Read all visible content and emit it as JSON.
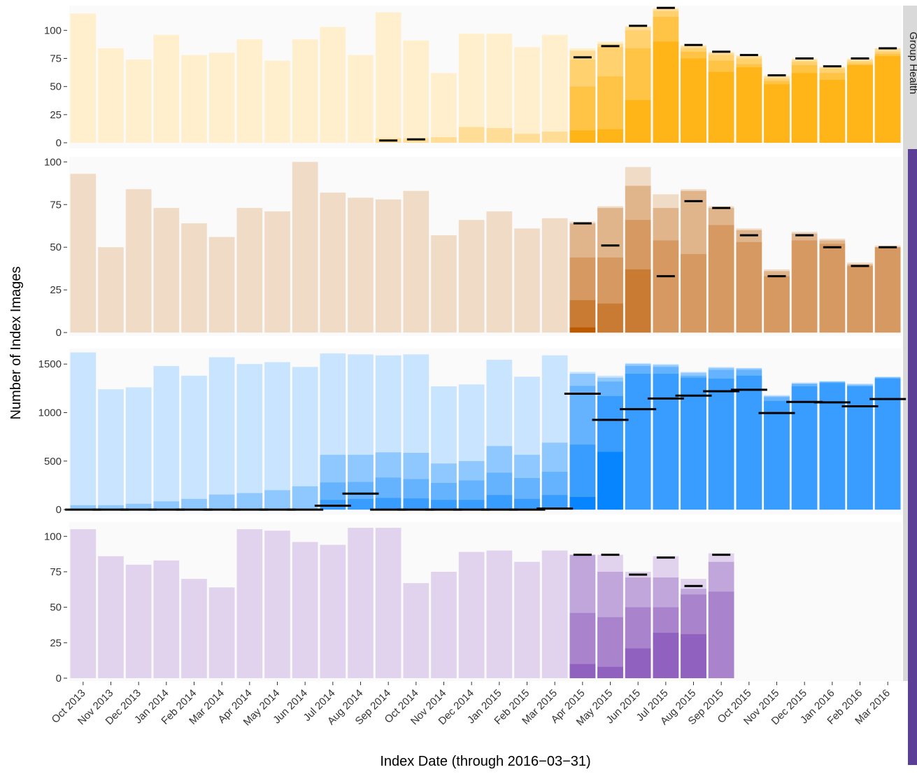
{
  "chart_data": {
    "type": "bar",
    "stacking": "nested-overlay",
    "xlabel": "Index Date (through 2016−03−31)",
    "ylabel": "Number of Index Images",
    "categories": [
      "Oct 2013",
      "Nov 2013",
      "Dec 2013",
      "Jan 2014",
      "Feb 2014",
      "Mar 2014",
      "Apr 2014",
      "May 2014",
      "Jun 2014",
      "Jul 2014",
      "Aug 2014",
      "Sep 2014",
      "Oct 2014",
      "Nov 2014",
      "Dec 2014",
      "Jan 2015",
      "Feb 2015",
      "Mar 2015",
      "Apr 2015",
      "May 2015",
      "Jun 2015",
      "Jul 2015",
      "Aug 2015",
      "Sep 2015",
      "Oct 2015",
      "Nov 2015",
      "Dec 2015",
      "Jan 2016",
      "Feb 2016",
      "Mar 2016"
    ],
    "grid": false,
    "panel_background": "#fafafa",
    "strip_color": "#d9d9d9",
    "accent_bar_color": "#5b3f96",
    "panels": [
      {
        "strip_label": "Group Health",
        "color": "#ffb417",
        "ylim": [
          -5,
          122
        ],
        "yticks": [
          0,
          25,
          50,
          75,
          100
        ],
        "layers": [
          [
            115,
            84,
            74,
            96,
            78,
            80,
            92,
            73,
            92,
            103,
            78,
            116,
            91,
            62,
            97,
            97,
            85,
            96,
            84,
            90,
            104,
            120,
            87,
            81,
            78,
            60,
            75,
            68,
            75,
            84
          ],
          [
            0,
            0,
            0,
            0,
            0,
            0,
            0,
            0,
            0,
            0,
            0,
            4,
            4,
            5,
            14,
            13,
            8,
            10,
            82,
            88,
            103,
            119,
            86,
            80,
            77,
            59,
            74,
            67,
            74,
            84
          ],
          [
            0,
            0,
            0,
            0,
            0,
            0,
            0,
            0,
            0,
            0,
            0,
            0,
            0,
            0,
            0,
            0,
            0,
            0,
            74,
            85,
            100,
            117,
            84,
            78,
            75,
            57,
            72,
            66,
            72,
            81
          ],
          [
            0,
            0,
            0,
            0,
            0,
            0,
            0,
            0,
            0,
            0,
            0,
            0,
            0,
            0,
            0,
            0,
            0,
            0,
            50,
            59,
            84,
            112,
            81,
            73,
            70,
            55,
            69,
            62,
            70,
            79
          ],
          [
            0,
            0,
            0,
            0,
            0,
            0,
            0,
            0,
            0,
            0,
            0,
            0,
            0,
            0,
            0,
            0,
            0,
            0,
            11,
            12,
            38,
            90,
            75,
            63,
            67,
            52,
            62,
            56,
            69,
            77
          ]
        ],
        "marks": [
          null,
          null,
          null,
          null,
          null,
          null,
          null,
          null,
          null,
          null,
          null,
          2,
          3,
          null,
          null,
          null,
          null,
          null,
          76,
          86,
          104,
          120,
          87,
          81,
          78,
          60,
          75,
          68,
          75,
          84
        ],
        "mark_span": [
          1,
          1,
          1,
          1,
          1,
          1,
          1,
          1,
          1,
          1,
          1,
          1,
          1,
          1,
          1,
          1,
          1,
          1,
          1,
          1,
          1,
          1,
          1,
          1,
          1,
          1,
          1,
          1,
          1,
          1
        ]
      },
      {
        "strip_label": "",
        "color": "#bd5a00",
        "ylim": [
          -2,
          103
        ],
        "yticks": [
          0,
          25,
          50,
          75,
          100
        ],
        "layers": [
          [
            93,
            50,
            84,
            73,
            64,
            56,
            73,
            71,
            100,
            82,
            79,
            78,
            83,
            57,
            66,
            71,
            61,
            67,
            65,
            74,
            97,
            81,
            84,
            74,
            61,
            37,
            59,
            55,
            41,
            51
          ],
          [
            0,
            0,
            0,
            0,
            0,
            0,
            0,
            0,
            0,
            0,
            0,
            0,
            0,
            0,
            0,
            0,
            0,
            0,
            64,
            73,
            86,
            73,
            83,
            73,
            60,
            36,
            58,
            54,
            40,
            50
          ],
          [
            0,
            0,
            0,
            0,
            0,
            0,
            0,
            0,
            0,
            0,
            0,
            0,
            0,
            0,
            0,
            0,
            0,
            0,
            44,
            44,
            66,
            54,
            46,
            63,
            53,
            33,
            54,
            52,
            39,
            50
          ],
          [
            0,
            0,
            0,
            0,
            0,
            0,
            0,
            0,
            0,
            0,
            0,
            0,
            0,
            0,
            0,
            0,
            0,
            0,
            19,
            17,
            37,
            0,
            0,
            0,
            0,
            0,
            0,
            0,
            0,
            0
          ],
          [
            0,
            0,
            0,
            0,
            0,
            0,
            0,
            0,
            0,
            0,
            0,
            0,
            0,
            0,
            0,
            0,
            0,
            0,
            3,
            0,
            0,
            0,
            0,
            0,
            0,
            0,
            0,
            0,
            0,
            0
          ]
        ],
        "marks": [
          null,
          null,
          null,
          null,
          null,
          null,
          null,
          null,
          null,
          null,
          null,
          null,
          null,
          null,
          null,
          null,
          null,
          null,
          64,
          51,
          null,
          33,
          77,
          73,
          57,
          33,
          57,
          50,
          39,
          50
        ],
        "mark_span": [
          1,
          1,
          1,
          1,
          1,
          1,
          1,
          1,
          1,
          1,
          1,
          1,
          1,
          1,
          1,
          1,
          1,
          1,
          1,
          1,
          1,
          1,
          1,
          1,
          1,
          1,
          1,
          1,
          1,
          1
        ]
      },
      {
        "strip_label": "",
        "color": "#0784ff",
        "ylim": [
          -50,
          1660
        ],
        "yticks": [
          0,
          500,
          1000,
          1500
        ],
        "layers": [
          [
            1620,
            1240,
            1260,
            1480,
            1380,
            1570,
            1500,
            1520,
            1470,
            1610,
            1600,
            1590,
            1600,
            1270,
            1290,
            1545,
            1370,
            1590,
            1420,
            1380,
            1510,
            1500,
            1420,
            1470,
            1460,
            1180,
            1310,
            1325,
            1300,
            1370
          ],
          [
            45,
            45,
            60,
            85,
            110,
            155,
            170,
            200,
            240,
            565,
            565,
            590,
            585,
            475,
            500,
            655,
            565,
            690,
            1400,
            1360,
            1500,
            1490,
            1410,
            1460,
            1455,
            1170,
            1300,
            1320,
            1290,
            1365
          ],
          [
            0,
            0,
            0,
            0,
            0,
            0,
            0,
            0,
            0,
            280,
            285,
            330,
            315,
            275,
            300,
            380,
            325,
            390,
            1275,
            1320,
            1480,
            1470,
            1380,
            1440,
            1440,
            1160,
            1295,
            1315,
            1280,
            1360
          ],
          [
            0,
            0,
            0,
            0,
            0,
            0,
            0,
            0,
            0,
            100,
            110,
            120,
            115,
            100,
            100,
            150,
            110,
            150,
            670,
            1170,
            1400,
            1400,
            1360,
            1350,
            1380,
            1120,
            1270,
            1305,
            1270,
            1350
          ],
          [
            0,
            0,
            0,
            0,
            0,
            0,
            0,
            0,
            0,
            0,
            0,
            0,
            0,
            0,
            0,
            0,
            0,
            0,
            130,
            595,
            0,
            0,
            0,
            0,
            0,
            0,
            0,
            0,
            0,
            0
          ]
        ],
        "marks": [
          0,
          0,
          0,
          0,
          0,
          0,
          0,
          0,
          0,
          40,
          165,
          0,
          0,
          0,
          0,
          0,
          0,
          10,
          1195,
          925,
          1035,
          1145,
          1175,
          1220,
          1235,
          995,
          1110,
          1105,
          1065,
          1140
        ],
        "mark_span": [
          2,
          2,
          2,
          2,
          2,
          2,
          2,
          2,
          2,
          2,
          2,
          2,
          2,
          2,
          2,
          2,
          2,
          2,
          2,
          2,
          2,
          2,
          2,
          2,
          2,
          2,
          2,
          2,
          2,
          2
        ]
      },
      {
        "strip_label": "",
        "color": "#7539af",
        "ylim": [
          -2,
          110
        ],
        "yticks": [
          0,
          25,
          50,
          75,
          100
        ],
        "layers": [
          [
            105,
            86,
            80,
            83,
            70,
            64,
            105,
            104,
            96,
            94,
            106,
            106,
            67,
            75,
            89,
            90,
            82,
            90,
            87,
            87,
            75,
            86,
            70,
            88,
            null,
            null,
            null,
            null,
            null,
            null
          ],
          [
            0,
            0,
            0,
            0,
            0,
            0,
            0,
            0,
            0,
            0,
            0,
            0,
            0,
            0,
            0,
            0,
            0,
            0,
            87,
            75,
            71,
            71,
            63,
            82,
            null,
            null,
            null,
            null,
            null,
            null
          ],
          [
            0,
            0,
            0,
            0,
            0,
            0,
            0,
            0,
            0,
            0,
            0,
            0,
            0,
            0,
            0,
            0,
            0,
            0,
            46,
            43,
            50,
            50,
            59,
            61,
            null,
            null,
            null,
            null,
            null,
            null
          ],
          [
            0,
            0,
            0,
            0,
            0,
            0,
            0,
            0,
            0,
            0,
            0,
            0,
            0,
            0,
            0,
            0,
            0,
            0,
            10,
            8,
            21,
            32,
            31,
            0,
            null,
            null,
            null,
            null,
            null,
            null
          ]
        ],
        "marks": [
          null,
          null,
          null,
          null,
          null,
          null,
          null,
          null,
          null,
          null,
          null,
          null,
          null,
          null,
          null,
          null,
          null,
          null,
          87,
          87,
          73,
          85,
          65,
          87,
          null,
          null,
          null,
          null,
          null,
          null
        ],
        "mark_span": [
          1,
          1,
          1,
          1,
          1,
          1,
          1,
          1,
          1,
          1,
          1,
          1,
          1,
          1,
          1,
          1,
          1,
          1,
          1,
          1,
          1,
          1,
          1,
          1,
          1,
          1,
          1,
          1,
          1,
          1
        ]
      }
    ]
  }
}
